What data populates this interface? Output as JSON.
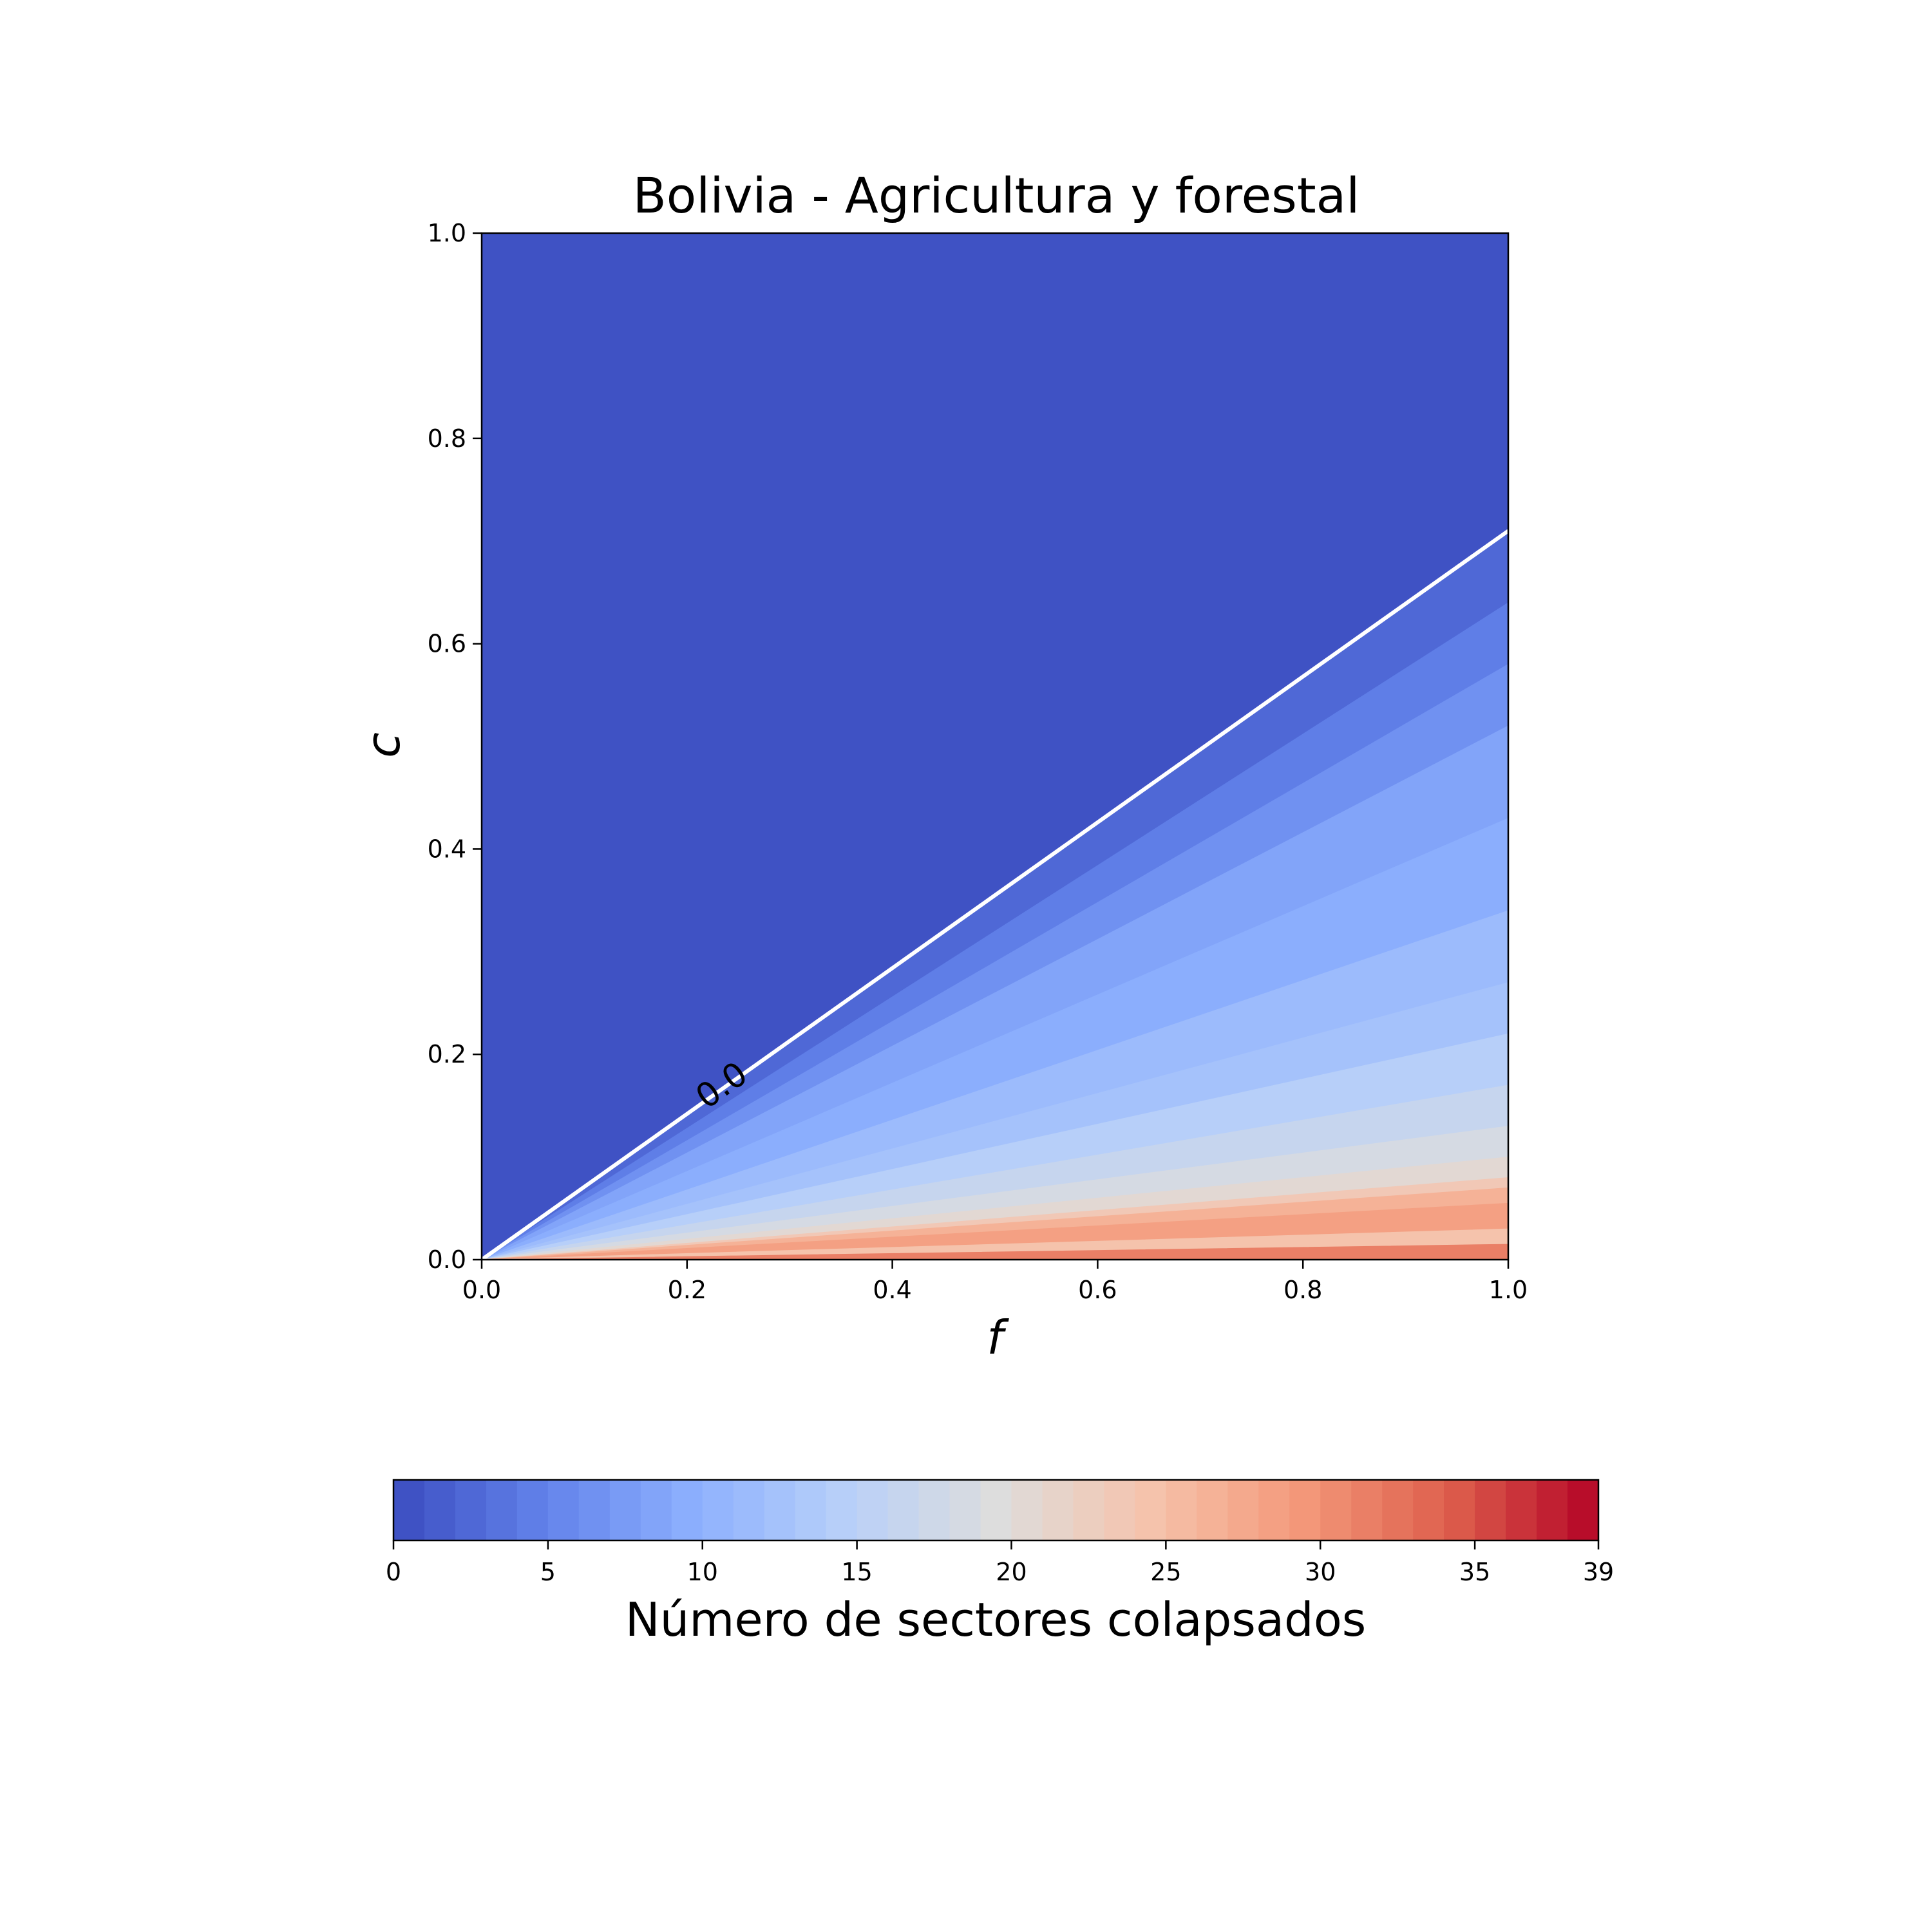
{
  "chart_data": {
    "type": "heatmap",
    "title": "Bolivia - Agricultura y forestal",
    "xlabel": "f",
    "ylabel": "c",
    "xlim": [
      0.0,
      1.0
    ],
    "ylim": [
      0.0,
      1.0
    ],
    "x_ticks": [
      "0.0",
      "0.2",
      "0.4",
      "0.6",
      "0.8",
      "1.0"
    ],
    "y_ticks": [
      "0.0",
      "0.2",
      "0.4",
      "0.6",
      "0.8",
      "1.0"
    ],
    "colormap": "coolwarm",
    "colorbar": {
      "label": "Número de sectores colapsados",
      "min": 0,
      "max": 39,
      "levels": 39,
      "ticks": [
        "0",
        "5",
        "10",
        "15",
        "20",
        "25",
        "30",
        "35",
        "39"
      ],
      "orientation": "horizontal",
      "placement": "bottom"
    },
    "contour": {
      "level_label": "0.0",
      "color": "#ffffff",
      "line": [
        [
          0.0,
          0.0
        ],
        [
          0.1,
          0.071
        ],
        [
          0.2,
          0.142
        ],
        [
          0.3,
          0.213
        ],
        [
          0.4,
          0.284
        ],
        [
          0.5,
          0.355
        ],
        [
          0.6,
          0.426
        ],
        [
          0.7,
          0.497
        ],
        [
          0.8,
          0.568
        ],
        [
          0.9,
          0.639
        ],
        [
          1.0,
          0.71
        ]
      ],
      "label_position": [
        0.235,
        0.168
      ]
    },
    "value_bands": [
      {
        "value": 0,
        "c_over_f_min": 0.71,
        "c_over_f_max": 999
      },
      {
        "value": 2,
        "c_over_f_min": 0.64,
        "c_over_f_max": 0.71
      },
      {
        "value": 4,
        "c_over_f_min": 0.58,
        "c_over_f_max": 0.64
      },
      {
        "value": 6,
        "c_over_f_min": 0.52,
        "c_over_f_max": 0.58
      },
      {
        "value": 8,
        "c_over_f_min": 0.43,
        "c_over_f_max": 0.52
      },
      {
        "value": 9,
        "c_over_f_min": 0.34,
        "c_over_f_max": 0.43
      },
      {
        "value": 11,
        "c_over_f_min": 0.27,
        "c_over_f_max": 0.34
      },
      {
        "value": 12,
        "c_over_f_min": 0.22,
        "c_over_f_max": 0.27
      },
      {
        "value": 14,
        "c_over_f_min": 0.17,
        "c_over_f_max": 0.22
      },
      {
        "value": 16,
        "c_over_f_min": 0.13,
        "c_over_f_max": 0.17
      },
      {
        "value": 18,
        "c_over_f_min": 0.1,
        "c_over_f_max": 0.13
      },
      {
        "value": 20,
        "c_over_f_min": 0.08,
        "c_over_f_max": 0.1
      },
      {
        "value": 23,
        "c_over_f_min": 0.07,
        "c_over_f_max": 0.08
      },
      {
        "value": 26,
        "c_over_f_min": 0.055,
        "c_over_f_max": 0.07
      },
      {
        "value": 28,
        "c_over_f_min": 0.03,
        "c_over_f_max": 0.055
      },
      {
        "value": 24,
        "c_over_f_min": 0.015,
        "c_over_f_max": 0.03
      },
      {
        "value": 31,
        "c_over_f_min": 0.0,
        "c_over_f_max": 0.015
      }
    ],
    "grid": false,
    "legend": "none"
  }
}
